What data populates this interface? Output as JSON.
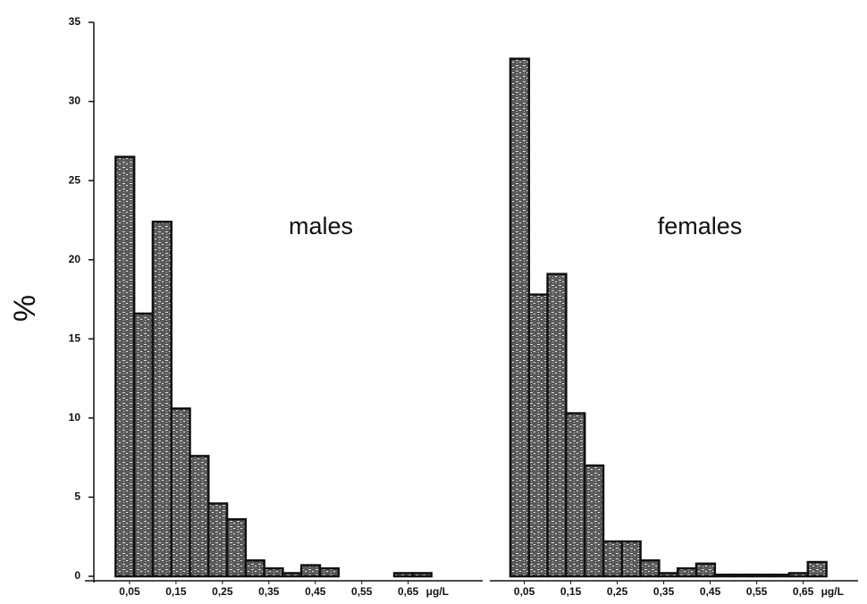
{
  "chart_data": [
    {
      "type": "histogram",
      "label": "males",
      "ylabel": "%",
      "xlabel": "μg/L",
      "color": "#3a3a3a",
      "bins": [
        0.02,
        0.06,
        0.1,
        0.14,
        0.18,
        0.22,
        0.26,
        0.3,
        0.34,
        0.38,
        0.42,
        0.46,
        0.5,
        0.54,
        0.58,
        0.62,
        0.66,
        0.7
      ],
      "values": [
        26.5,
        16.6,
        22.4,
        10.6,
        7.6,
        4.6,
        3.6,
        1.0,
        0.5,
        0.2,
        0.7,
        0.5,
        0,
        0,
        0,
        0.2,
        0.2
      ],
      "xlim": [
        -0.05,
        0.82
      ],
      "ylim": [
        0,
        35
      ],
      "yticks": [
        0,
        5,
        10,
        15,
        20,
        25,
        30,
        35
      ],
      "xticks": [
        {
          "value": 0.05,
          "label": "0,05"
        },
        {
          "value": 0.15,
          "label": "0,15"
        },
        {
          "value": 0.25,
          "label": "0,25"
        },
        {
          "value": 0.35,
          "label": "0,35"
        },
        {
          "value": 0.45,
          "label": "0,45"
        },
        {
          "value": 0.55,
          "label": "0,55"
        },
        {
          "value": 0.65,
          "label": "0,65"
        }
      ]
    },
    {
      "type": "histogram",
      "label": "females",
      "xlabel": "μg/L",
      "color": "#3a3a3a",
      "bins": [
        0.02,
        0.06,
        0.1,
        0.14,
        0.18,
        0.22,
        0.26,
        0.3,
        0.34,
        0.38,
        0.42,
        0.46,
        0.5,
        0.54,
        0.58,
        0.62,
        0.66,
        0.7
      ],
      "values": [
        32.7,
        17.8,
        19.1,
        10.3,
        7.0,
        2.2,
        2.2,
        1.0,
        0.2,
        0.5,
        0.8,
        0.1,
        0.1,
        0.1,
        0.1,
        0.2,
        0.9
      ],
      "xlim": [
        -0.03,
        0.77
      ],
      "ylim": [
        0,
        35
      ],
      "xticks": [
        {
          "value": 0.05,
          "label": "0,05"
        },
        {
          "value": 0.15,
          "label": "0,15"
        },
        {
          "value": 0.25,
          "label": "0,25"
        },
        {
          "value": 0.35,
          "label": "0,35"
        },
        {
          "value": 0.45,
          "label": "0,45"
        },
        {
          "value": 0.55,
          "label": "0,55"
        },
        {
          "value": 0.65,
          "label": "0,65"
        }
      ]
    }
  ]
}
